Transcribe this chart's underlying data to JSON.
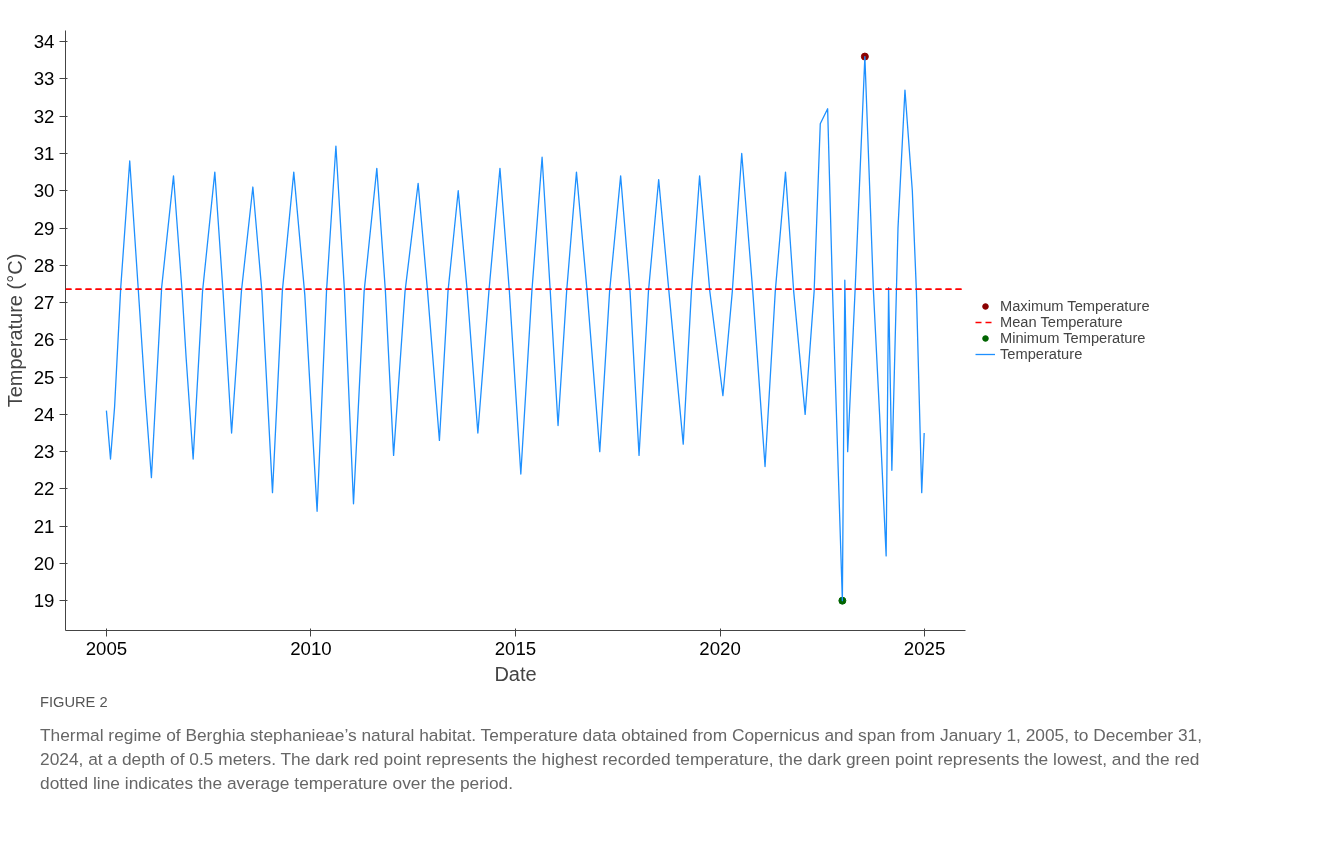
{
  "chart_data": {
    "type": "line",
    "xlabel": "Date",
    "ylabel": "Temperature (°C)",
    "xlim": [
      2004,
      2026
    ],
    "ylim": [
      18.2,
      34.3
    ],
    "xticks": [
      2005,
      2010,
      2015,
      2020,
      2025
    ],
    "yticks": [
      19,
      20,
      21,
      22,
      23,
      24,
      25,
      26,
      27,
      28,
      29,
      30,
      31,
      32,
      33,
      34
    ],
    "grid": false,
    "legend": "right",
    "series": [
      {
        "name": "Maximum Temperature",
        "type": "scatter",
        "color": "#8b0000",
        "x": [
          2023.54
        ],
        "values": [
          33.6
        ]
      },
      {
        "name": "Minimum Temperature",
        "type": "scatter",
        "color": "#006400",
        "x": [
          2022.99
        ],
        "values": [
          19.0
        ]
      },
      {
        "name": "Temperature",
        "color": "#1e90ff",
        "x": [
          2005.0,
          2005.1,
          2005.2,
          2005.35,
          2005.57,
          2005.8,
          2005.95,
          2006.1,
          2006.35,
          2006.64,
          2006.85,
          2006.95,
          2007.12,
          2007.35,
          2007.65,
          2007.85,
          2008.06,
          2008.3,
          2008.58,
          2008.8,
          2009.06,
          2009.3,
          2009.58,
          2009.85,
          2010.15,
          2010.38,
          2010.61,
          2010.82,
          2011.04,
          2011.3,
          2011.61,
          2011.82,
          2012.02,
          2012.3,
          2012.62,
          2012.85,
          2013.14,
          2013.35,
          2013.6,
          2013.82,
          2014.08,
          2014.35,
          2014.62,
          2014.85,
          2015.13,
          2015.4,
          2015.65,
          2015.85,
          2016.04,
          2016.25,
          2016.49,
          2016.75,
          2017.06,
          2017.3,
          2017.57,
          2017.8,
          2018.02,
          2018.25,
          2018.5,
          2018.75,
          2019.1,
          2019.3,
          2019.5,
          2019.75,
          2020.07,
          2020.3,
          2020.53,
          2020.8,
          2021.1,
          2021.35,
          2021.6,
          2021.8,
          2022.08,
          2022.3,
          2022.45,
          2022.63,
          2022.75,
          2022.99,
          2023.05,
          2023.12,
          2023.3,
          2023.54,
          2023.75,
          2023.9,
          2024.06,
          2024.12,
          2024.2,
          2024.35,
          2024.52,
          2024.7,
          2024.8,
          2024.93,
          2024.99
        ],
        "values": [
          24.1,
          22.8,
          24.2,
          27.4,
          30.8,
          27.0,
          24.5,
          22.3,
          27.4,
          30.4,
          27.3,
          25.5,
          22.8,
          27.3,
          30.5,
          27.3,
          23.5,
          27.3,
          30.1,
          27.3,
          21.9,
          27.3,
          30.5,
          27.2,
          21.4,
          27.3,
          31.2,
          27.3,
          21.6,
          27.3,
          30.6,
          27.3,
          22.9,
          27.3,
          30.2,
          27.3,
          23.3,
          27.3,
          30.0,
          27.3,
          23.5,
          27.3,
          30.6,
          27.3,
          22.4,
          27.3,
          30.9,
          27.3,
          23.7,
          27.3,
          30.5,
          27.3,
          23.0,
          27.3,
          30.4,
          27.3,
          22.9,
          27.3,
          30.3,
          27.3,
          23.2,
          27.3,
          30.4,
          27.3,
          24.5,
          27.3,
          31.0,
          27.3,
          22.6,
          27.3,
          30.5,
          27.3,
          24.0,
          27.3,
          31.8,
          32.2,
          27.3,
          19.0,
          27.6,
          23.0,
          27.3,
          33.6,
          27.3,
          24.0,
          20.2,
          27.4,
          22.5,
          29.0,
          32.7,
          30.0,
          27.3,
          21.9,
          23.5
        ]
      }
    ],
    "ref_lines": [
      {
        "axis": "y",
        "value": 27.36,
        "label": "Mean Temperature",
        "color": "#ff0000",
        "line_style": "dashed"
      }
    ],
    "annotations": [
      "FIGURE 2",
      "Thermal regime of Berghia stephanieae’s natural habitat. Temperature data obtained from Copernicus and span from January 1, 2005, to December 31, 2024, at a depth of 0.5 meters. The dark red point represents the highest recorded temperature, the dark green point represents the lowest, and the red dotted line indicates the average temperature over the period."
    ]
  }
}
